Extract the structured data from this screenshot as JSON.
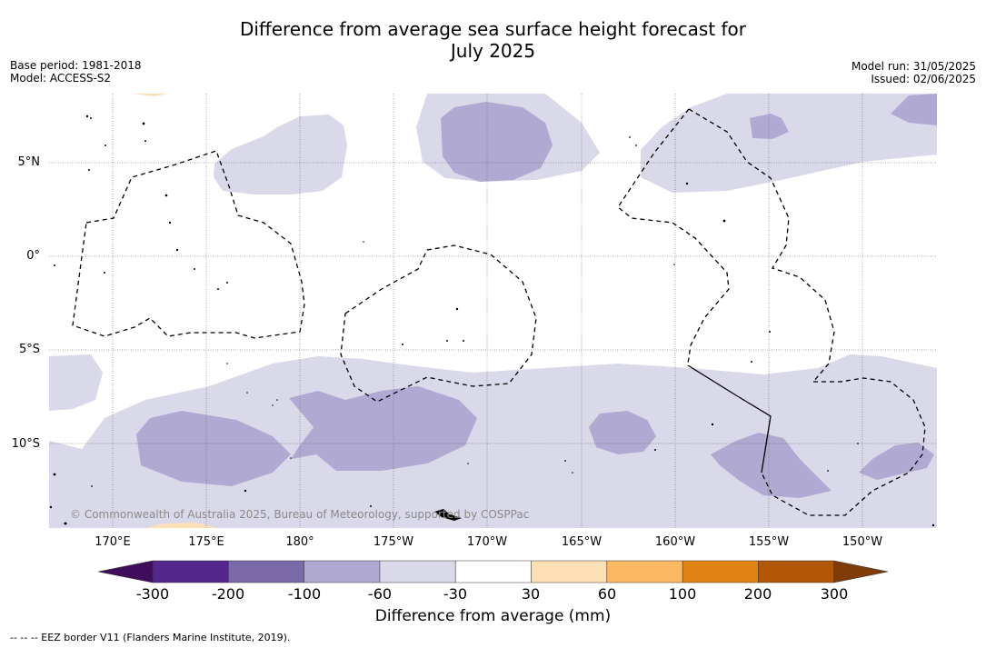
{
  "title_line1": "Difference from average sea surface height forecast for",
  "title_line2": "July 2025",
  "meta_left": {
    "base_period": "Base period: 1981-2018",
    "model": "Model: ACCESS-S2"
  },
  "meta_right": {
    "model_run": "Model run: 31/05/2025",
    "issued": "Issued: 02/06/2025"
  },
  "lat_labels": [
    "5°N",
    "0°",
    "5°S",
    "10°S"
  ],
  "lon_labels": [
    "170°E",
    "175°E",
    "180°",
    "175°W",
    "170°W",
    "165°W",
    "160°W",
    "155°W",
    "150°W"
  ],
  "copyright": "© Commonwealth of Australia 2025, Bureau of Meteorology, supported by COSPPac",
  "colorbar": {
    "label": "Difference from average (mm)",
    "ticks": [
      "-300",
      "-200",
      "-100",
      "-60",
      "-30",
      "30",
      "60",
      "100",
      "200",
      "300"
    ],
    "colors": [
      "#3f0d5c",
      "#54278f",
      "#7a6aaa",
      "#b0a9d1",
      "#d9d9ea",
      "#ffffff",
      "#fee0b6",
      "#fdb863",
      "#e08214",
      "#b35806",
      "#7f3b08"
    ]
  },
  "legend_footer": "--  --  -- EEZ border V11 (Flanders Marine Institute, 2019)."
}
